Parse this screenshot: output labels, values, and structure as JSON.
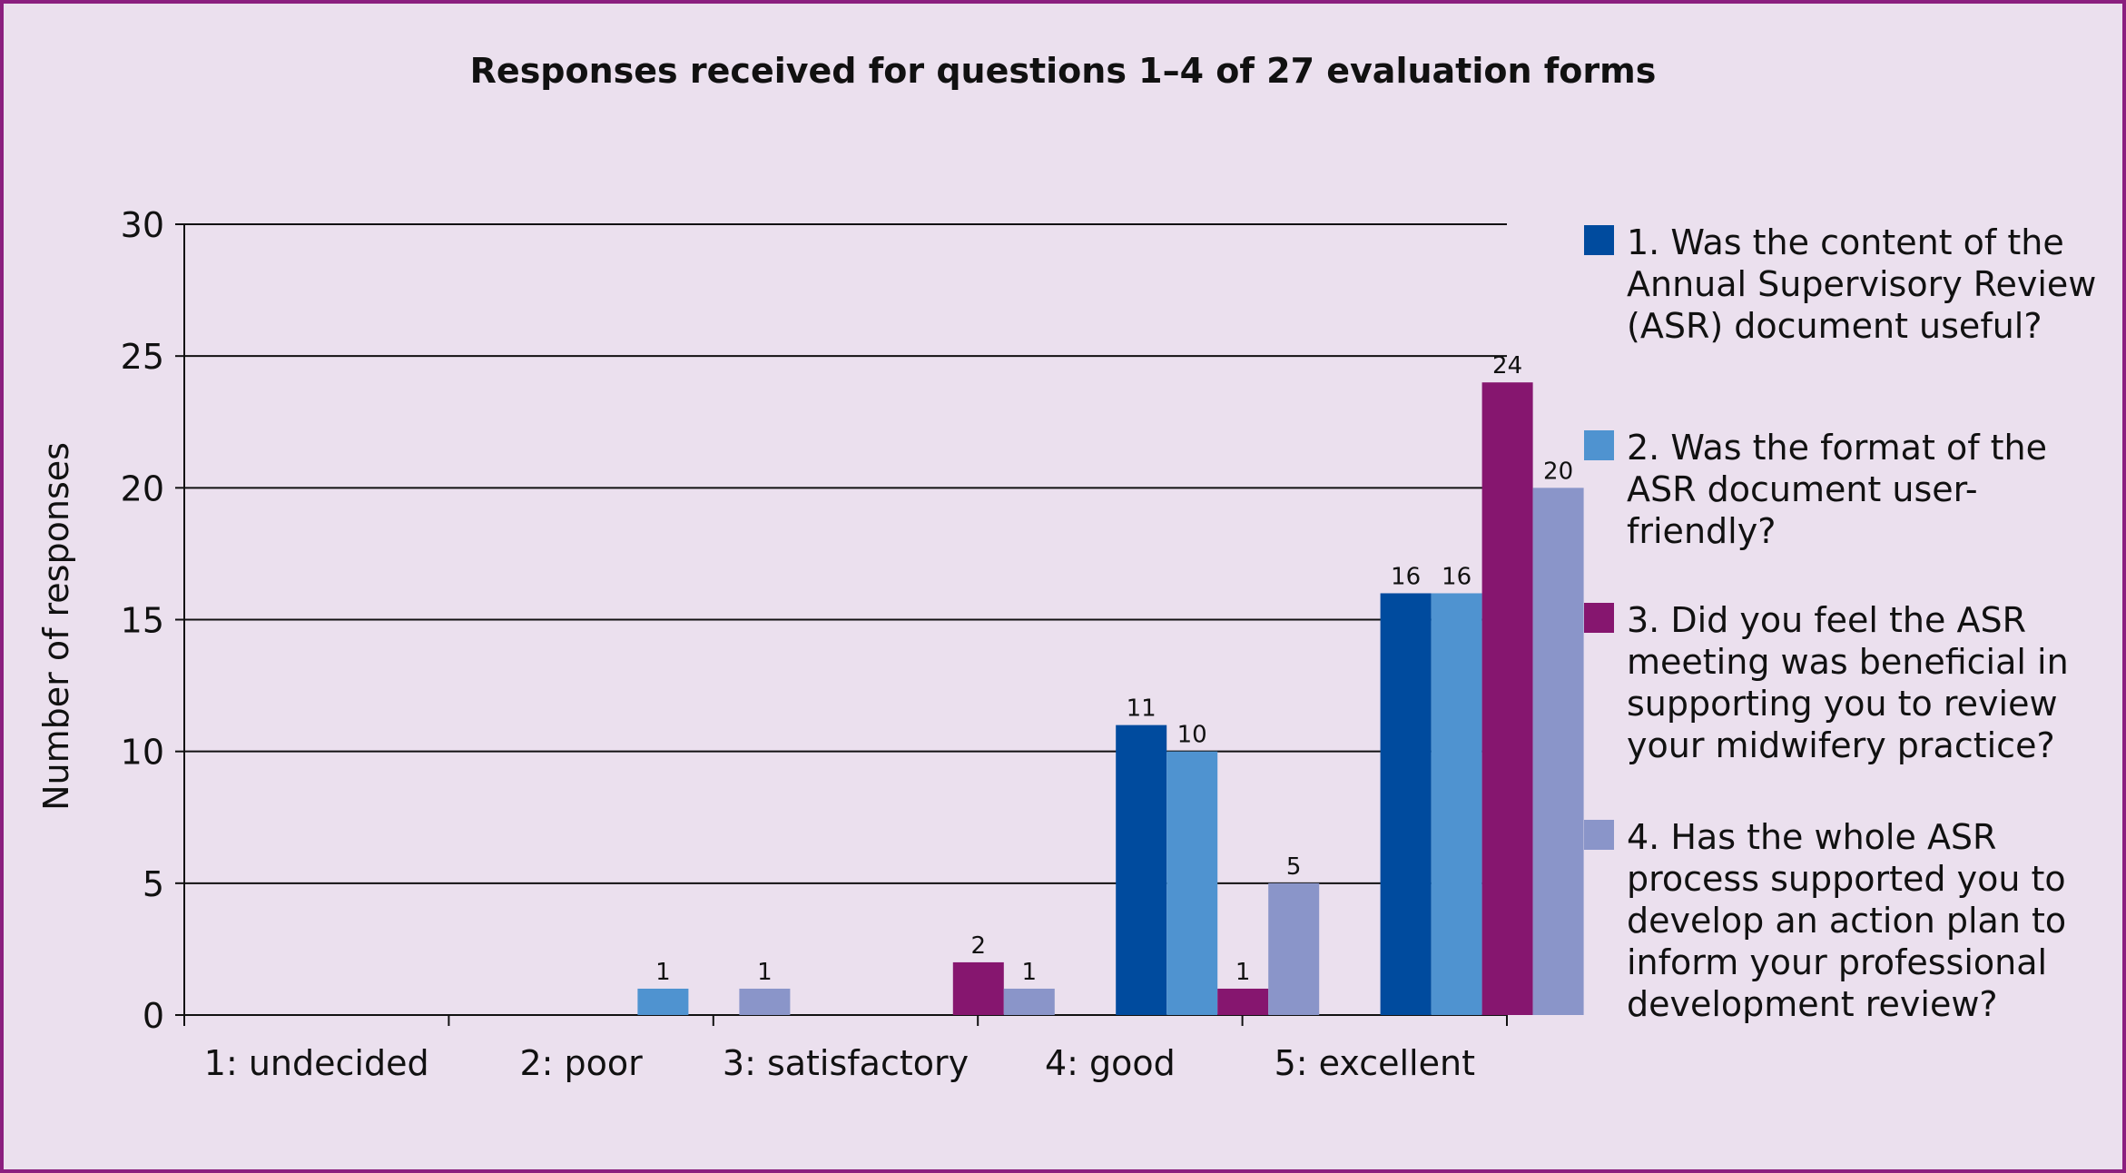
{
  "chart_data": {
    "type": "bar",
    "title": "Responses received for questions 1–4 of 27 evaluation forms",
    "xlabel": "",
    "ylabel": "Number of responses",
    "ylim": [
      0,
      30
    ],
    "yticks": [
      0,
      5,
      10,
      15,
      20,
      25,
      30
    ],
    "grid": true,
    "legend_position": "right",
    "categories": [
      "1: undecided",
      "2: poor",
      "3: satisfactory",
      "4: good",
      "5: excellent"
    ],
    "series": [
      {
        "name": "1. Was the content of the Annual Supervisory Review (ASR) document useful?",
        "color": "#004b9e",
        "values": [
          0,
          0,
          0,
          11,
          16
        ]
      },
      {
        "name": "2. Was the format of the ASR document user-friendly?",
        "color": "#4f93d0",
        "values": [
          0,
          1,
          0,
          10,
          16
        ]
      },
      {
        "name": "3. Did you feel the ASR meeting was beneficial in supporting you to review your midwifery practice?",
        "color": "#86166f",
        "values": [
          0,
          0,
          2,
          1,
          24
        ]
      },
      {
        "name": "4. Has the whole ASR process supported you to develop an action plan to inform your professional development review?",
        "color": "#8a95c9",
        "values": [
          0,
          1,
          1,
          5,
          20
        ]
      }
    ]
  }
}
